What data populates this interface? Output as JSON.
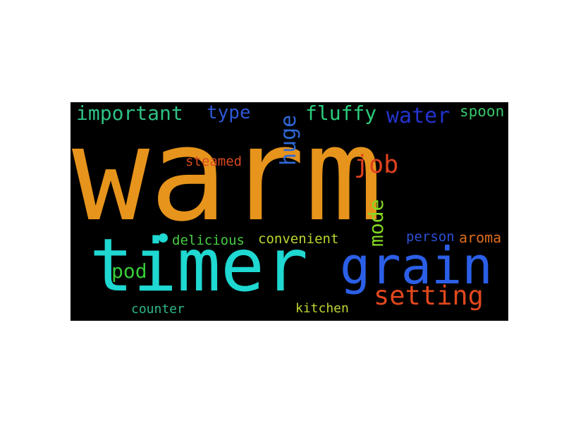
{
  "word_cloud": {
    "words": [
      {
        "text": "warm",
        "color": "#e6941c"
      },
      {
        "text": "timer",
        "color": "#1ed8d1"
      },
      {
        "text": "grain",
        "color": "#2b5fe8"
      },
      {
        "text": "setting",
        "color": "#e2471e"
      },
      {
        "text": "important",
        "color": "#2fc083"
      },
      {
        "text": "type",
        "color": "#2d58d8"
      },
      {
        "text": "huge",
        "color": "#2f67d6"
      },
      {
        "text": "fluffy",
        "color": "#2bcc7a"
      },
      {
        "text": "water",
        "color": "#2233d0"
      },
      {
        "text": "spoon",
        "color": "#38c96a"
      },
      {
        "text": "steamed",
        "color": "#d7491f"
      },
      {
        "text": "job",
        "color": "#e1421f"
      },
      {
        "text": "mode",
        "color": "#85d923"
      },
      {
        "text": "delicious",
        "color": "#48cc44"
      },
      {
        "text": "convenient",
        "color": "#b8d82e"
      },
      {
        "text": "person",
        "color": "#2d4fd6"
      },
      {
        "text": "aroma",
        "color": "#df6d1c"
      },
      {
        "text": "pod",
        "color": "#37cc3a"
      },
      {
        "text": "counter",
        "color": "#2fb78a"
      },
      {
        "text": "kitchen",
        "color": "#c1d431"
      }
    ],
    "dot_color": "#1ed8d1"
  }
}
